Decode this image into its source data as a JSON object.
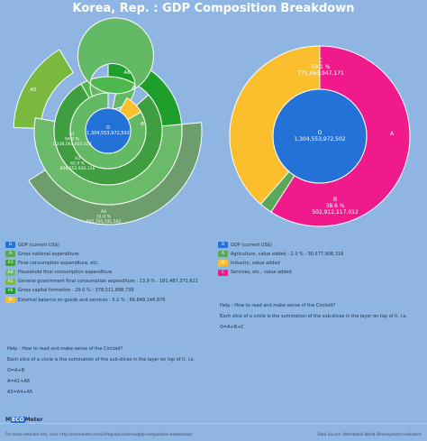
{
  "title": "Korea, Rep. : GDP Composition Breakdown",
  "colors": {
    "O": "#2472d8",
    "A": "#5aa85a",
    "A1": "#4db84d",
    "A3": "#3f9e3f",
    "A4": "#6aba6a",
    "A5": "#7ab83e",
    "A6": "#1e9e2a",
    "B": "#fbbe2c",
    "C": "#f01a8c",
    "ringGrey": "#6d9c6d"
  },
  "chart_data": [
    {
      "type": "pie",
      "description_labels": {
        "O": "O\n1,304,553,972,502",
        "A1": "A1\n94.9 %\n1,238,064,405,023",
        "A3": "A3\n65.9 %\n859,552,926,116",
        "A4": "A4\n51.0 %\n665,750,741,502",
        "A5": "A5",
        "A6": "A6",
        "B": "B"
      },
      "labels": [
        {
          "key": "O",
          "lines": [
            "O",
            "1,304,553,972,502"
          ]
        },
        {
          "key": "A1",
          "lines": [
            "A1",
            "94.9 %",
            "1,238,064,405,023"
          ]
        },
        {
          "key": "A3",
          "lines": [
            "A3",
            "65.9 %",
            "859,552,926,116"
          ]
        },
        {
          "key": "A4",
          "lines": [
            "A4",
            "51.0 %",
            "665,750,741,502"
          ]
        },
        {
          "key": "A5",
          "lines": [
            "A5"
          ]
        },
        {
          "key": "A6",
          "lines": [
            "A6"
          ]
        },
        {
          "key": "B",
          "lines": [
            "B"
          ]
        }
      ],
      "series": [
        {
          "key": "O",
          "ring": 0,
          "value": 1304553972502
        },
        {
          "key": "A1",
          "ring": 1,
          "percent": 94.9
        },
        {
          "key": "B",
          "ring": 1,
          "percent": 5.1
        },
        {
          "key": "A3",
          "ring": 2,
          "percent": 65.9
        },
        {
          "key": "A6",
          "ring": 2,
          "percent": 29.0
        },
        {
          "key": "A4",
          "ring": 3,
          "percent": 51.0
        },
        {
          "key": "A5",
          "ring": 3,
          "percent": 13.9
        }
      ]
    },
    {
      "type": "pie",
      "labels": [
        {
          "key": "O",
          "lines": [
            "O",
            "1,304,553,972,502"
          ]
        },
        {
          "key": "C",
          "lines": [
            "C",
            "59.1 %",
            "771,063,947,171"
          ]
        },
        {
          "key": "B",
          "lines": [
            "B",
            "38.6 %",
            "502,912,117,012"
          ]
        },
        {
          "key": "A",
          "lines": [
            "A"
          ]
        }
      ],
      "series": [
        {
          "key": "O",
          "ring": 0,
          "value": 1304553972502
        },
        {
          "key": "C",
          "ring": 1,
          "percent": 59.1,
          "value": 771063947171
        },
        {
          "key": "A",
          "ring": 1,
          "percent": 2.3,
          "value": 30577908318
        },
        {
          "key": "B",
          "ring": 1,
          "percent": 38.6,
          "value": 502912117012
        }
      ]
    }
  ],
  "legend_left": [
    {
      "key": "O",
      "text": "GDP (current US$)"
    },
    {
      "key": "A",
      "text": "Gross national expenditure"
    },
    {
      "key": "A3",
      "text": "Final consumption expenditure, etc."
    },
    {
      "key": "A4",
      "text": "Household final consumption expenditure"
    },
    {
      "key": "A5",
      "text": "General government final consumption expenditure : 13.9 % : 181,487,371,611"
    },
    {
      "key": "A6",
      "text": "Gross capital formation : 29.0 % : 378,511,898,739"
    },
    {
      "key": "B",
      "text": "External balance on goods and services : 5.1 % : 66,849,146,876"
    }
  ],
  "legend_right": [
    {
      "key": "O",
      "text": "GDP (current US$)"
    },
    {
      "key": "A",
      "text": "Agriculture, value added : 2.3 % : 30,577,908,318"
    },
    {
      "key": "B",
      "text": "Industry, value added"
    },
    {
      "key": "C",
      "text": "Services, etc., value added"
    }
  ],
  "help_left": [
    "Help : How to read and make sense of the Circloid?",
    "Each slice of a circle is the summation of the sub-slices in the layer on top of it. i.e.",
    "O=A+B",
    "A=A1+A6",
    "A3=A4+A5"
  ],
  "help_right": [
    "Help : How to read and make sense of the Circloid?",
    "Each slice of a circle is the summation of the sub-slices in the layer on top of it. i.e.",
    "O=A+B+C"
  ],
  "footer": {
    "logo_a": "M",
    "logo_b": "ECO",
    "logo_c": "Meter",
    "more_info": "For more detailed info, visit: http://mecometer.com/infographic/korea/gdp-composition-breakdown/",
    "source": "Data Source: Worldbank World Development Indicators"
  }
}
